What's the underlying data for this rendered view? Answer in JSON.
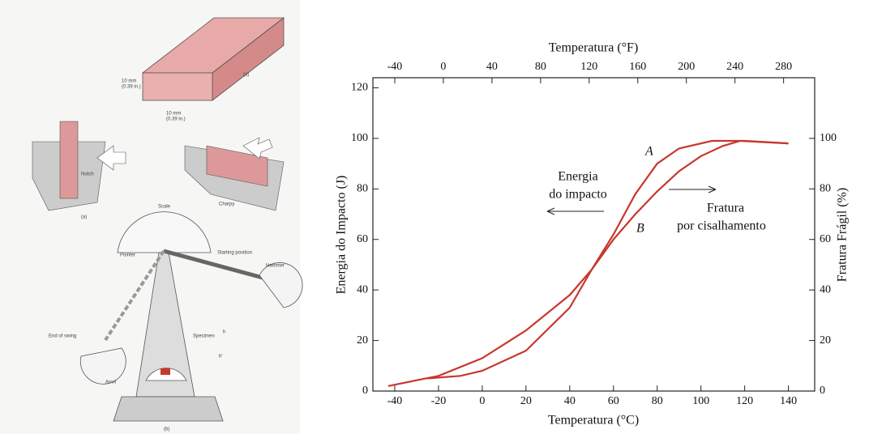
{
  "diagram": {
    "labels": [
      "10 mm",
      "(0.39 in.)",
      "10 mm",
      "(0.39 in.)",
      "(a)",
      "Notch",
      "Charpy",
      "Scale",
      "Pointer",
      "Starting position",
      "Hammer",
      "End of swing",
      "Specimen",
      "Anvil",
      "h",
      "h'",
      "(b)"
    ]
  },
  "chart_data": {
    "type": "line",
    "title": "Temperatura (°F)",
    "x_label": "Temperatura (°C)",
    "y_label": "Energia do Impacto (J)",
    "y2_label": "Fratura Frágil (%)",
    "xlim": [
      -50,
      152
    ],
    "xticks": [
      -40,
      -20,
      0,
      20,
      40,
      60,
      80,
      100,
      120,
      140
    ],
    "x2lim": [
      -58,
      305.6
    ],
    "x2ticks": [
      -40,
      0,
      40,
      80,
      120,
      160,
      200,
      240,
      280
    ],
    "ylim": [
      0,
      124
    ],
    "yticks": [
      0,
      20,
      40,
      60,
      80,
      100,
      120
    ],
    "y2lim": [
      0,
      124
    ],
    "y2ticks": [
      0,
      20,
      40,
      60,
      80,
      100
    ],
    "series": [
      {
        "name": "A",
        "color": "#c8372d",
        "x": [
          -43,
          -20,
          0,
          20,
          40,
          50,
          60,
          70,
          80,
          90,
          105,
          120,
          140
        ],
        "values": [
          2,
          6,
          13,
          24,
          38,
          48,
          62,
          78,
          90,
          96,
          99,
          99,
          98
        ]
      },
      {
        "name": "B",
        "color": "#c8372d",
        "x": [
          -25,
          -10,
          0,
          20,
          40,
          50,
          60,
          70,
          80,
          90,
          100,
          110,
          118,
          140
        ],
        "values": [
          5,
          6,
          8,
          16,
          33,
          48,
          60,
          70,
          79,
          87,
          93,
          97,
          99,
          98
        ]
      }
    ],
    "annotations": [
      "Energia",
      "do impacto",
      "Fratura",
      "por cisalhamento"
    ]
  }
}
